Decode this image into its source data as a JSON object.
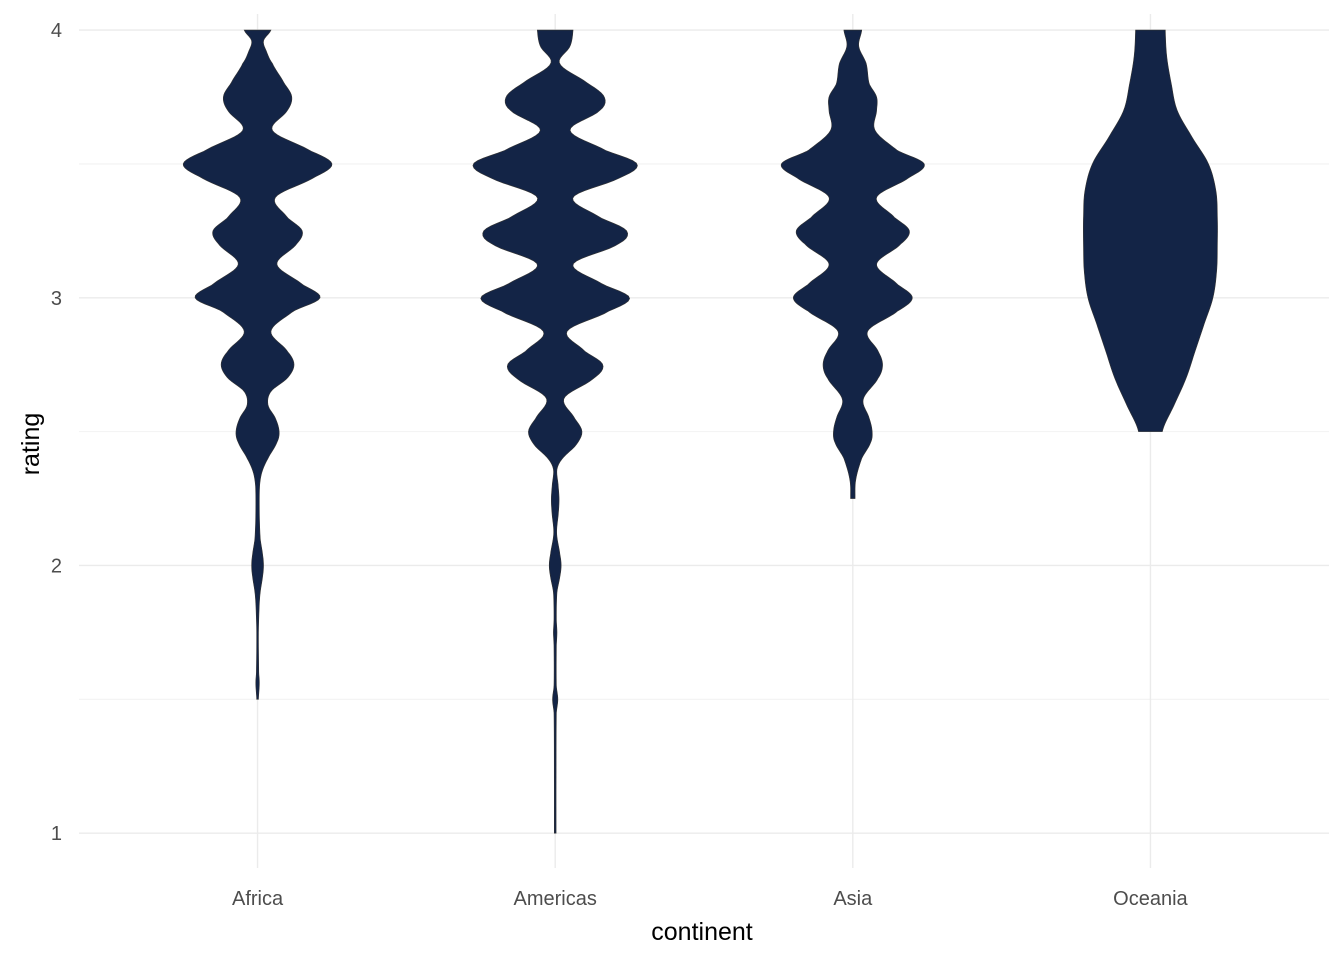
{
  "chart_data": {
    "type": "violin",
    "xlabel": "continent",
    "ylabel": "rating",
    "categories": [
      "Africa",
      "Americas",
      "Asia",
      "Oceania"
    ],
    "ylim": [
      0.87,
      4.06
    ],
    "yticks": [
      1,
      2,
      3,
      4
    ],
    "grid": true,
    "legend": "none",
    "fill_color": "#132446",
    "violins": [
      {
        "category": "Africa",
        "min": 1.5,
        "max": 4.0,
        "profile": [
          [
            1.5,
            0.006
          ],
          [
            1.56,
            0.012
          ],
          [
            1.6,
            0.008
          ],
          [
            1.75,
            0.006
          ],
          [
            1.85,
            0.011
          ],
          [
            1.9,
            0.018
          ],
          [
            1.96,
            0.034
          ],
          [
            2.0,
            0.04
          ],
          [
            2.04,
            0.034
          ],
          [
            2.1,
            0.018
          ],
          [
            2.2,
            0.012
          ],
          [
            2.3,
            0.014
          ],
          [
            2.35,
            0.03
          ],
          [
            2.4,
            0.07
          ],
          [
            2.46,
            0.13
          ],
          [
            2.5,
            0.145
          ],
          [
            2.55,
            0.12
          ],
          [
            2.6,
            0.07
          ],
          [
            2.65,
            0.09
          ],
          [
            2.7,
            0.2
          ],
          [
            2.75,
            0.245
          ],
          [
            2.8,
            0.2
          ],
          [
            2.875,
            0.09
          ],
          [
            2.95,
            0.24
          ],
          [
            3.0,
            0.42
          ],
          [
            3.05,
            0.3
          ],
          [
            3.125,
            0.13
          ],
          [
            3.2,
            0.26
          ],
          [
            3.25,
            0.3
          ],
          [
            3.3,
            0.2
          ],
          [
            3.375,
            0.12
          ],
          [
            3.45,
            0.38
          ],
          [
            3.5,
            0.5
          ],
          [
            3.55,
            0.35
          ],
          [
            3.625,
            0.1
          ],
          [
            3.7,
            0.2
          ],
          [
            3.75,
            0.23
          ],
          [
            3.8,
            0.18
          ],
          [
            3.875,
            0.1
          ],
          [
            3.92,
            0.06
          ],
          [
            3.96,
            0.04
          ],
          [
            4.0,
            0.09
          ]
        ]
      },
      {
        "category": "Americas",
        "min": 1.0,
        "max": 4.0,
        "profile": [
          [
            1.0,
            0.006
          ],
          [
            1.2,
            0.006
          ],
          [
            1.45,
            0.008
          ],
          [
            1.5,
            0.018
          ],
          [
            1.55,
            0.008
          ],
          [
            1.7,
            0.008
          ],
          [
            1.75,
            0.012
          ],
          [
            1.8,
            0.008
          ],
          [
            1.9,
            0.012
          ],
          [
            1.96,
            0.032
          ],
          [
            2.0,
            0.04
          ],
          [
            2.04,
            0.032
          ],
          [
            2.12,
            0.01
          ],
          [
            2.2,
            0.022
          ],
          [
            2.25,
            0.026
          ],
          [
            2.3,
            0.02
          ],
          [
            2.36,
            0.012
          ],
          [
            2.4,
            0.05
          ],
          [
            2.45,
            0.14
          ],
          [
            2.5,
            0.18
          ],
          [
            2.55,
            0.13
          ],
          [
            2.625,
            0.06
          ],
          [
            2.7,
            0.26
          ],
          [
            2.75,
            0.32
          ],
          [
            2.8,
            0.2
          ],
          [
            2.875,
            0.08
          ],
          [
            2.95,
            0.36
          ],
          [
            3.0,
            0.5
          ],
          [
            3.05,
            0.32
          ],
          [
            3.125,
            0.12
          ],
          [
            3.2,
            0.42
          ],
          [
            3.25,
            0.48
          ],
          [
            3.3,
            0.3
          ],
          [
            3.375,
            0.12
          ],
          [
            3.45,
            0.44
          ],
          [
            3.5,
            0.55
          ],
          [
            3.55,
            0.34
          ],
          [
            3.625,
            0.1
          ],
          [
            3.7,
            0.3
          ],
          [
            3.75,
            0.33
          ],
          [
            3.8,
            0.22
          ],
          [
            3.875,
            0.03
          ],
          [
            3.94,
            0.1
          ],
          [
            4.0,
            0.12
          ]
        ]
      },
      {
        "category": "Asia",
        "min": 2.25,
        "max": 4.0,
        "profile": [
          [
            2.25,
            0.015
          ],
          [
            2.32,
            0.02
          ],
          [
            2.4,
            0.06
          ],
          [
            2.46,
            0.12
          ],
          [
            2.5,
            0.13
          ],
          [
            2.55,
            0.11
          ],
          [
            2.62,
            0.07
          ],
          [
            2.7,
            0.17
          ],
          [
            2.75,
            0.2
          ],
          [
            2.8,
            0.17
          ],
          [
            2.875,
            0.1
          ],
          [
            2.95,
            0.3
          ],
          [
            3.0,
            0.4
          ],
          [
            3.05,
            0.3
          ],
          [
            3.125,
            0.16
          ],
          [
            3.2,
            0.32
          ],
          [
            3.25,
            0.38
          ],
          [
            3.3,
            0.28
          ],
          [
            3.375,
            0.16
          ],
          [
            3.45,
            0.38
          ],
          [
            3.5,
            0.48
          ],
          [
            3.55,
            0.3
          ],
          [
            3.625,
            0.15
          ],
          [
            3.7,
            0.16
          ],
          [
            3.75,
            0.16
          ],
          [
            3.8,
            0.11
          ],
          [
            3.875,
            0.09
          ],
          [
            3.94,
            0.04
          ],
          [
            4.0,
            0.06
          ]
        ]
      },
      {
        "category": "Oceania",
        "min": 2.5,
        "max": 4.0,
        "profile": [
          [
            2.5,
            0.08
          ],
          [
            2.6,
            0.16
          ],
          [
            2.7,
            0.24
          ],
          [
            2.8,
            0.3
          ],
          [
            2.9,
            0.36
          ],
          [
            3.0,
            0.42
          ],
          [
            3.1,
            0.445
          ],
          [
            3.2,
            0.45
          ],
          [
            3.3,
            0.45
          ],
          [
            3.4,
            0.44
          ],
          [
            3.5,
            0.39
          ],
          [
            3.6,
            0.28
          ],
          [
            3.7,
            0.18
          ],
          [
            3.8,
            0.14
          ],
          [
            3.9,
            0.11
          ],
          [
            4.0,
            0.1
          ]
        ]
      }
    ]
  }
}
